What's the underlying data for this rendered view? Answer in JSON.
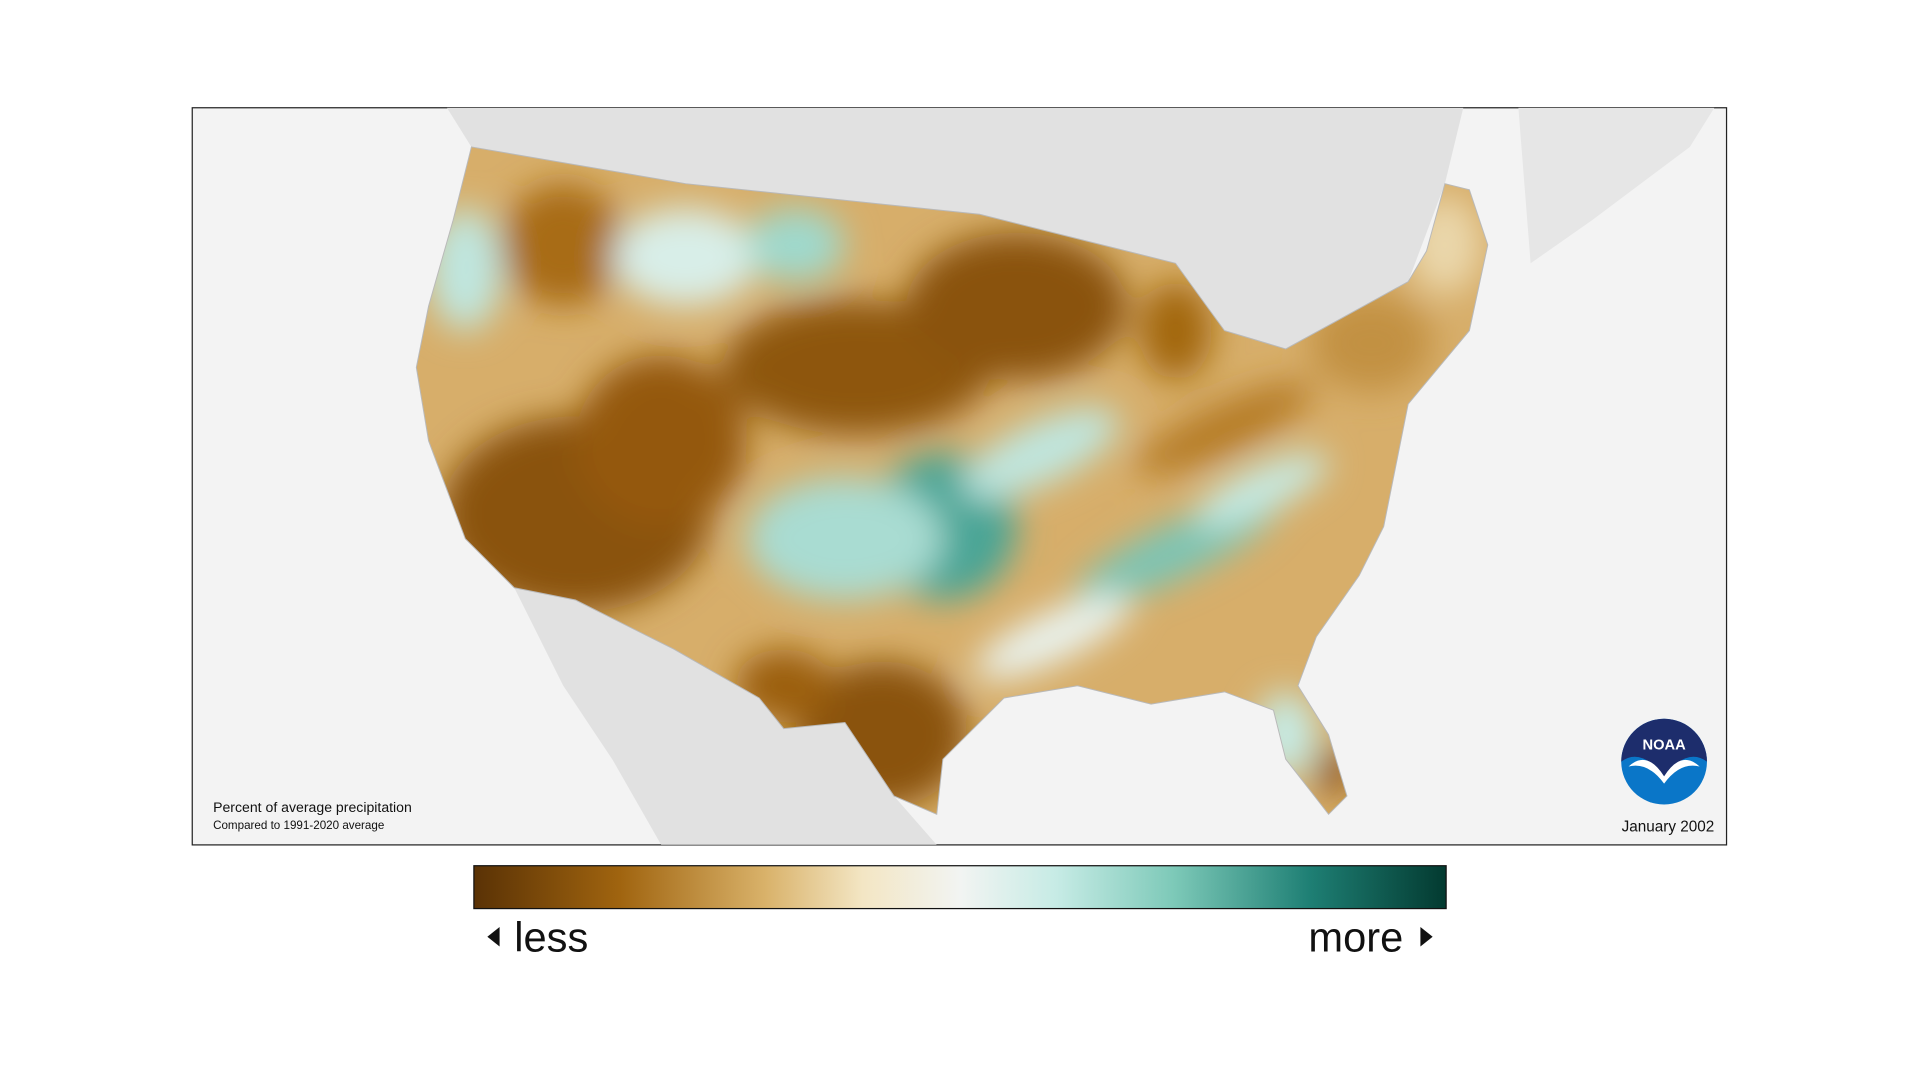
{
  "map": {
    "caption_title": "Percent of average precipitation",
    "caption_subtitle": "Compared to 1991-2020 average",
    "date": "January 2002",
    "logo": "NOAA"
  },
  "legend": {
    "low_label": "less",
    "high_label": "more"
  }
}
